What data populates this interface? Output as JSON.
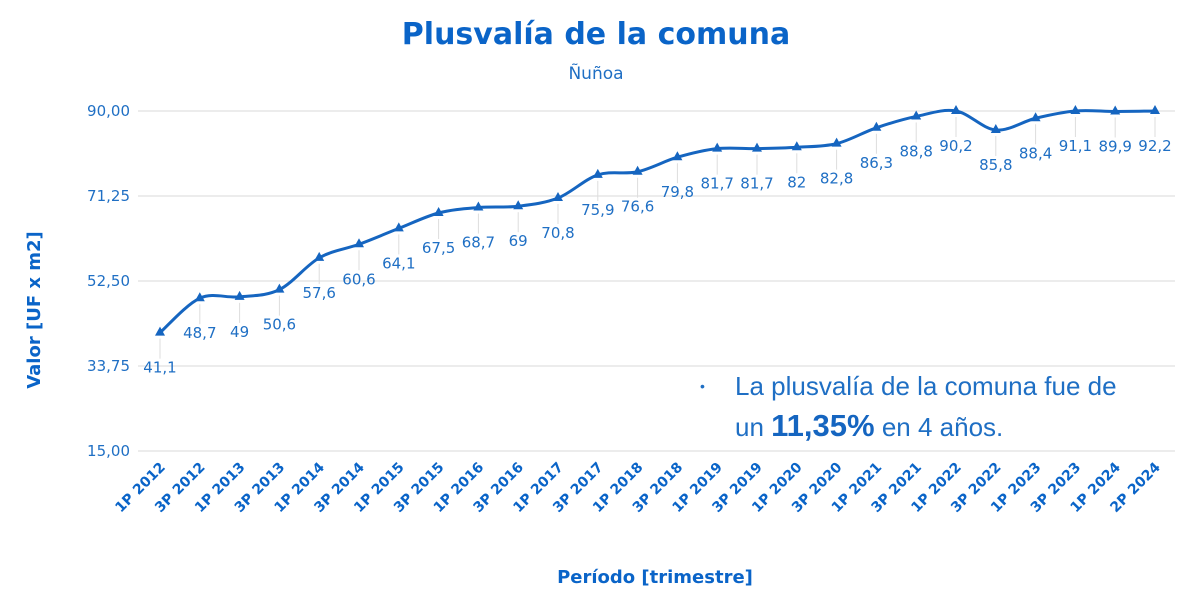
{
  "chart_data": {
    "type": "line",
    "title": "Plusvalía de la comuna",
    "subtitle": "Ñuñoa",
    "xlabel": "Período [trimestre]",
    "ylabel": "Valor [UF x m2]",
    "ylim": [
      15,
      90
    ],
    "yticks": [
      "15,00",
      "33,75",
      "52,50",
      "71,25",
      "90,00"
    ],
    "grid": true,
    "categories": [
      "1P 2012",
      "3P 2012",
      "1P 2013",
      "3P 2013",
      "1P 2014",
      "3P 2014",
      "1P 2015",
      "3P 2015",
      "1P 2016",
      "3P 2016",
      "1P 2017",
      "3P 2017",
      "1P 2018",
      "3P 2018",
      "1P 2019",
      "3P 2019",
      "1P 2020",
      "3P 2020",
      "1P 2021",
      "3P 2021",
      "1P 2022",
      "3P 2022",
      "1P 2023",
      "3P 2023",
      "1P 2024",
      "2P 2024"
    ],
    "series": [
      {
        "values": [
          41.1,
          48.7,
          49,
          50.6,
          57.6,
          60.6,
          64.1,
          67.5,
          68.7,
          69,
          70.8,
          75.9,
          76.6,
          79.8,
          81.7,
          81.7,
          82,
          82.8,
          86.3,
          88.8,
          90.2,
          85.8,
          88.4,
          91.1,
          89.9,
          92.2
        ],
        "labels": [
          "41,1",
          "48,7",
          "49",
          "50,6",
          "57,6",
          "60,6",
          "64,1",
          "67,5",
          "68,7",
          "69",
          "70,8",
          "75,9",
          "76,6",
          "79,8",
          "81,7",
          "81,7",
          "82",
          "82,8",
          "86,3",
          "88,8",
          "90,2",
          "85,8",
          "88,4",
          "91,1",
          "89,9",
          "92,2"
        ]
      }
    ],
    "color": "#1565c0"
  },
  "annotation": {
    "bullet": "•",
    "line1": "La plusvalía de la comuna fue de",
    "line2_pre": "un",
    "highlight": "11,35%",
    "line2_post": "en 4 años."
  }
}
